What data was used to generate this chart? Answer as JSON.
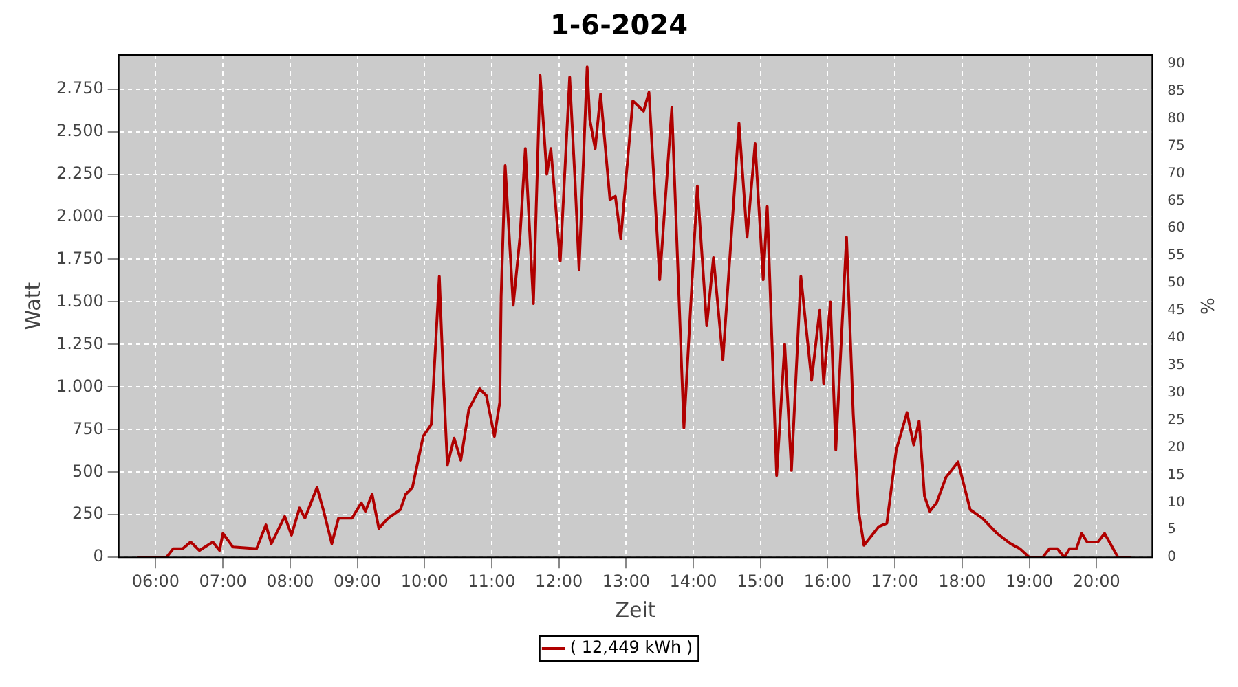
{
  "chart_data": {
    "type": "line",
    "title": "1-6-2024",
    "xlabel": "Zeit",
    "ylabel": "Watt",
    "y2label": "%",
    "xlim": [
      5.45,
      20.83
    ],
    "xticks": [
      {
        "value": 6,
        "label": "06:00"
      },
      {
        "value": 7,
        "label": "07:00"
      },
      {
        "value": 8,
        "label": "08:00"
      },
      {
        "value": 9,
        "label": "09:00"
      },
      {
        "value": 10,
        "label": "10:00"
      },
      {
        "value": 11,
        "label": "11:00"
      },
      {
        "value": 12,
        "label": "12:00"
      },
      {
        "value": 13,
        "label": "13:00"
      },
      {
        "value": 14,
        "label": "14:00"
      },
      {
        "value": 15,
        "label": "15:00"
      },
      {
        "value": 16,
        "label": "16:00"
      },
      {
        "value": 17,
        "label": "17:00"
      },
      {
        "value": 18,
        "label": "18:00"
      },
      {
        "value": 19,
        "label": "19:00"
      },
      {
        "value": 20,
        "label": "20:00"
      }
    ],
    "ylim": [
      0,
      2950
    ],
    "yticks": [
      0,
      250,
      500,
      750,
      {
        "value": 1000,
        "label": "1.000"
      },
      {
        "value": 1250,
        "label": "1.250"
      },
      {
        "value": 1500,
        "label": "1.500"
      },
      {
        "value": 1750,
        "label": "1.750"
      },
      {
        "value": 2000,
        "label": "2.000"
      },
      {
        "value": 2250,
        "label": "2.250"
      },
      {
        "value": 2500,
        "label": "2.500"
      },
      {
        "value": 2750,
        "label": "2.750"
      }
    ],
    "y2lim": [
      0,
      91.6
    ],
    "y2ticks": [
      0,
      5,
      10,
      15,
      20,
      25,
      30,
      35,
      40,
      45,
      50,
      55,
      60,
      65,
      70,
      75,
      80,
      85,
      90
    ],
    "grid": true,
    "legend": "bottom",
    "marker": "none",
    "line_style": "solid",
    "series": [
      {
        "name": "( 12,449 kWh )",
        "color": "#b00000",
        "x": [
          5.72,
          6.16,
          6.26,
          6.4,
          6.52,
          6.65,
          6.85,
          6.95,
          7.0,
          7.15,
          7.5,
          7.64,
          7.72,
          7.92,
          8.02,
          8.14,
          8.22,
          8.4,
          8.5,
          8.62,
          8.72,
          8.92,
          9.06,
          9.12,
          9.22,
          9.32,
          9.46,
          9.64,
          9.72,
          9.82,
          9.98,
          10.1,
          10.22,
          10.28,
          10.34,
          10.44,
          10.54,
          10.66,
          10.82,
          10.92,
          11.04,
          11.12,
          11.14,
          11.2,
          11.32,
          11.42,
          11.5,
          11.56,
          11.62,
          11.72,
          11.82,
          11.88,
          12.02,
          12.16,
          12.24,
          12.3,
          12.42,
          12.46,
          12.54,
          12.62,
          12.76,
          12.84,
          12.92,
          13.1,
          13.26,
          13.34,
          13.5,
          13.68,
          13.86,
          14.06,
          14.2,
          14.3,
          14.44,
          14.68,
          14.8,
          14.92,
          15.04,
          15.1,
          15.24,
          15.36,
          15.46,
          15.6,
          15.76,
          15.88,
          15.94,
          16.04,
          16.12,
          16.28,
          16.38,
          16.46,
          16.54,
          16.76,
          16.88,
          17.02,
          17.18,
          17.28,
          17.36,
          17.44,
          17.52,
          17.62,
          17.76,
          17.94,
          18.12,
          18.3,
          18.52,
          18.72,
          18.86,
          19.0,
          19.2,
          19.3,
          19.42,
          19.52,
          19.6,
          19.7,
          19.78,
          19.86,
          20.02,
          20.12,
          20.32,
          20.52
        ],
        "values": [
          0,
          0,
          50,
          50,
          90,
          40,
          90,
          40,
          140,
          60,
          50,
          190,
          80,
          240,
          130,
          290,
          230,
          410,
          270,
          80,
          230,
          230,
          320,
          270,
          370,
          170,
          230,
          280,
          370,
          410,
          710,
          780,
          1650,
          1050,
          540,
          700,
          570,
          870,
          990,
          950,
          710,
          910,
          1530,
          2300,
          1480,
          1880,
          2400,
          1950,
          1490,
          2830,
          2250,
          2400,
          1740,
          2820,
          2210,
          1690,
          2880,
          2570,
          2400,
          2720,
          2100,
          2120,
          1870,
          2680,
          2620,
          2730,
          1630,
          2640,
          760,
          2180,
          1360,
          1760,
          1160,
          2550,
          1880,
          2430,
          1630,
          2060,
          480,
          1250,
          510,
          1650,
          1040,
          1450,
          1020,
          1500,
          630,
          1880,
          840,
          270,
          70,
          180,
          200,
          630,
          850,
          660,
          800,
          360,
          270,
          320,
          470,
          560,
          280,
          230,
          140,
          80,
          50,
          0,
          0,
          50,
          50,
          0,
          50,
          50,
          140,
          90,
          90,
          140,
          0,
          0
        ]
      }
    ]
  }
}
